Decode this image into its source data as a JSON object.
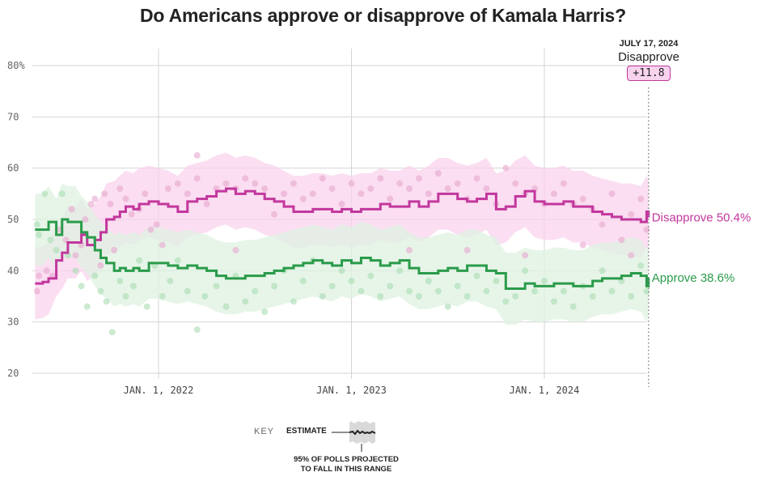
{
  "chart_data": {
    "type": "line",
    "title": "Do Americans approve or disapprove of Kamala Harris?",
    "xlabel": "",
    "ylabel": "",
    "ylim": [
      20,
      80
    ],
    "xlim": [
      2021.35,
      2024.54
    ],
    "y_ticks": [
      {
        "value": 80,
        "label": "80%"
      },
      {
        "value": 70,
        "label": "70"
      },
      {
        "value": 60,
        "label": "60"
      },
      {
        "value": 50,
        "label": "50"
      },
      {
        "value": 40,
        "label": "40"
      },
      {
        "value": 30,
        "label": "30"
      },
      {
        "value": 20,
        "label": "20"
      }
    ],
    "x_ticks": [
      {
        "value": 2022.0,
        "label": "JAN. 1, 2022"
      },
      {
        "value": 2023.0,
        "label": "JAN. 1, 2023"
      },
      {
        "value": 2024.0,
        "label": "JAN. 1, 2024"
      }
    ],
    "grid": true,
    "series": [
      {
        "name": "Disapprove",
        "color": "#c2379d",
        "band_color": "#f9d3ec",
        "dot_color": "#e7a6cf",
        "end_label": "Disapprove 50.4%",
        "x": [
          2021.36,
          2021.4,
          2021.43,
          2021.47,
          2021.5,
          2021.53,
          2021.57,
          2021.6,
          2021.63,
          2021.67,
          2021.7,
          2021.73,
          2021.77,
          2021.8,
          2021.83,
          2021.87,
          2021.9,
          2021.95,
          2022.0,
          2022.05,
          2022.1,
          2022.15,
          2022.2,
          2022.25,
          2022.3,
          2022.35,
          2022.4,
          2022.45,
          2022.5,
          2022.55,
          2022.6,
          2022.65,
          2022.7,
          2022.75,
          2022.8,
          2022.85,
          2022.9,
          2022.95,
          2023.0,
          2023.05,
          2023.1,
          2023.15,
          2023.2,
          2023.25,
          2023.3,
          2023.35,
          2023.4,
          2023.45,
          2023.5,
          2023.55,
          2023.6,
          2023.65,
          2023.7,
          2023.75,
          2023.8,
          2023.85,
          2023.9,
          2023.95,
          2024.0,
          2024.05,
          2024.1,
          2024.15,
          2024.2,
          2024.25,
          2024.3,
          2024.35,
          2024.4,
          2024.45,
          2024.5,
          2024.53,
          2024.54
        ],
        "values": [
          37.5,
          37.8,
          38.5,
          42.0,
          43.5,
          45.5,
          45.5,
          47.0,
          45.0,
          46.0,
          47.5,
          50.0,
          50.5,
          51.5,
          52.5,
          52.0,
          53.0,
          53.5,
          53.0,
          52.5,
          51.5,
          53.5,
          54.0,
          54.5,
          55.5,
          56.0,
          55.0,
          55.5,
          55.0,
          54.0,
          53.5,
          52.5,
          51.5,
          51.5,
          52.0,
          52.0,
          51.5,
          52.0,
          51.5,
          52.0,
          52.0,
          53.0,
          52.5,
          52.5,
          53.5,
          52.5,
          53.5,
          55.0,
          55.0,
          54.0,
          53.5,
          54.0,
          55.0,
          52.0,
          52.5,
          54.5,
          55.5,
          53.5,
          53.0,
          53.0,
          53.5,
          52.5,
          52.5,
          51.5,
          51.0,
          50.5,
          50.0,
          50.0,
          49.5,
          51.5,
          50.4
        ],
        "band_width": 7
      },
      {
        "name": "Approve",
        "color": "#2a9b4a",
        "band_color": "#dff2e2",
        "dot_color": "#a8dcb3",
        "end_label": "Approve 38.6%",
        "x": [
          2021.36,
          2021.4,
          2021.43,
          2021.47,
          2021.5,
          2021.53,
          2021.57,
          2021.6,
          2021.63,
          2021.67,
          2021.7,
          2021.73,
          2021.77,
          2021.8,
          2021.83,
          2021.87,
          2021.9,
          2021.95,
          2022.0,
          2022.05,
          2022.1,
          2022.15,
          2022.2,
          2022.25,
          2022.3,
          2022.35,
          2022.4,
          2022.45,
          2022.5,
          2022.55,
          2022.6,
          2022.65,
          2022.7,
          2022.75,
          2022.8,
          2022.85,
          2022.9,
          2022.95,
          2023.0,
          2023.05,
          2023.1,
          2023.15,
          2023.2,
          2023.25,
          2023.3,
          2023.35,
          2023.4,
          2023.45,
          2023.5,
          2023.55,
          2023.6,
          2023.65,
          2023.7,
          2023.75,
          2023.8,
          2023.85,
          2023.9,
          2023.95,
          2024.0,
          2024.05,
          2024.1,
          2024.15,
          2024.2,
          2024.25,
          2024.3,
          2024.35,
          2024.4,
          2024.45,
          2024.5,
          2024.53,
          2024.54
        ],
        "values": [
          48.0,
          48.0,
          49.5,
          47.0,
          50.0,
          49.5,
          49.5,
          47.5,
          46.5,
          44.0,
          42.5,
          41.5,
          40.0,
          40.5,
          40.0,
          40.5,
          40.0,
          41.5,
          41.5,
          41.0,
          40.5,
          41.0,
          40.5,
          40.0,
          39.0,
          38.5,
          38.5,
          39.0,
          39.0,
          39.5,
          40.0,
          40.5,
          41.0,
          41.5,
          42.0,
          41.5,
          41.0,
          42.0,
          41.5,
          42.5,
          42.0,
          41.0,
          41.5,
          42.0,
          40.5,
          39.5,
          39.5,
          40.0,
          40.5,
          40.0,
          41.0,
          41.0,
          40.0,
          39.5,
          36.5,
          36.5,
          37.5,
          37.0,
          37.0,
          37.5,
          37.5,
          37.0,
          37.0,
          38.0,
          38.5,
          38.5,
          39.0,
          39.5,
          39.0,
          37.0,
          38.6
        ],
        "band_width": 7
      }
    ],
    "polls": {
      "disapprove": [
        [
          2021.37,
          36
        ],
        [
          2021.38,
          39
        ],
        [
          2021.42,
          40
        ],
        [
          2021.45,
          39
        ],
        [
          2021.49,
          48
        ],
        [
          2021.52,
          46
        ],
        [
          2021.55,
          52
        ],
        [
          2021.57,
          43
        ],
        [
          2021.6,
          45
        ],
        [
          2021.62,
          50
        ],
        [
          2021.65,
          53
        ],
        [
          2021.67,
          54
        ],
        [
          2021.7,
          41
        ],
        [
          2021.72,
          55
        ],
        [
          2021.75,
          53
        ],
        [
          2021.77,
          44
        ],
        [
          2021.8,
          56
        ],
        [
          2021.83,
          54
        ],
        [
          2021.86,
          51
        ],
        [
          2021.9,
          52
        ],
        [
          2021.93,
          55
        ],
        [
          2021.96,
          48
        ],
        [
          2021.99,
          49
        ],
        [
          2022.05,
          56
        ],
        [
          2022.1,
          57
        ],
        [
          2022.15,
          55
        ],
        [
          2022.2,
          58
        ],
        [
          2022.25,
          53
        ],
        [
          2022.3,
          56
        ],
        [
          2022.35,
          57
        ],
        [
          2022.4,
          56
        ],
        [
          2022.45,
          58
        ],
        [
          2022.5,
          57
        ],
        [
          2022.55,
          56
        ],
        [
          2022.6,
          51
        ],
        [
          2022.65,
          55
        ],
        [
          2022.7,
          57
        ],
        [
          2022.75,
          54
        ],
        [
          2022.8,
          55
        ],
        [
          2022.85,
          58
        ],
        [
          2022.9,
          56
        ],
        [
          2022.95,
          53
        ],
        [
          2023.0,
          57
        ],
        [
          2023.05,
          55
        ],
        [
          2023.1,
          56
        ],
        [
          2023.15,
          58
        ],
        [
          2023.2,
          54
        ],
        [
          2023.25,
          57
        ],
        [
          2023.3,
          56
        ],
        [
          2023.35,
          58
        ],
        [
          2023.4,
          55
        ],
        [
          2023.45,
          59
        ],
        [
          2023.5,
          56
        ],
        [
          2023.55,
          57
        ],
        [
          2023.6,
          54
        ],
        [
          2023.65,
          58
        ],
        [
          2023.7,
          56
        ],
        [
          2023.75,
          53
        ],
        [
          2023.8,
          60
        ],
        [
          2023.85,
          57
        ],
        [
          2023.9,
          55
        ],
        [
          2023.95,
          56
        ],
        [
          2024.0,
          53
        ],
        [
          2024.05,
          55
        ],
        [
          2024.1,
          57
        ],
        [
          2024.15,
          53
        ],
        [
          2024.2,
          54
        ],
        [
          2024.25,
          52
        ],
        [
          2024.3,
          49
        ],
        [
          2024.35,
          55
        ],
        [
          2024.4,
          46
        ],
        [
          2024.45,
          51
        ],
        [
          2024.5,
          54
        ],
        [
          2024.53,
          48
        ],
        [
          2022.02,
          45
        ],
        [
          2022.2,
          62.5
        ],
        [
          2022.4,
          44
        ],
        [
          2023.3,
          44
        ],
        [
          2023.6,
          44
        ],
        [
          2023.9,
          43
        ],
        [
          2024.2,
          45
        ],
        [
          2024.45,
          43
        ]
      ],
      "approve": [
        [
          2021.37,
          49
        ],
        [
          2021.38,
          47
        ],
        [
          2021.41,
          55
        ],
        [
          2021.44,
          46
        ],
        [
          2021.47,
          44
        ],
        [
          2021.5,
          55
        ],
        [
          2021.53,
          43
        ],
        [
          2021.57,
          40
        ],
        [
          2021.6,
          37
        ],
        [
          2021.63,
          33
        ],
        [
          2021.67,
          39
        ],
        [
          2021.7,
          36
        ],
        [
          2021.73,
          34
        ],
        [
          2021.76,
          28
        ],
        [
          2021.8,
          38
        ],
        [
          2021.83,
          35
        ],
        [
          2021.87,
          37
        ],
        [
          2021.9,
          42
        ],
        [
          2021.94,
          33
        ],
        [
          2021.98,
          41
        ],
        [
          2022.02,
          35
        ],
        [
          2022.06,
          38
        ],
        [
          2022.1,
          42
        ],
        [
          2022.15,
          36
        ],
        [
          2022.2,
          28.5
        ],
        [
          2022.24,
          35
        ],
        [
          2022.3,
          37
        ],
        [
          2022.35,
          33
        ],
        [
          2022.4,
          39
        ],
        [
          2022.45,
          34
        ],
        [
          2022.5,
          36
        ],
        [
          2022.55,
          32
        ],
        [
          2022.6,
          37
        ],
        [
          2022.65,
          40
        ],
        [
          2022.7,
          34
        ],
        [
          2022.75,
          38
        ],
        [
          2022.8,
          42
        ],
        [
          2022.85,
          35
        ],
        [
          2022.9,
          37
        ],
        [
          2022.95,
          40
        ],
        [
          2023.0,
          38
        ],
        [
          2023.05,
          36
        ],
        [
          2023.1,
          39
        ],
        [
          2023.15,
          35
        ],
        [
          2023.2,
          37
        ],
        [
          2023.25,
          40
        ],
        [
          2023.3,
          36
        ],
        [
          2023.35,
          35
        ],
        [
          2023.4,
          38
        ],
        [
          2023.45,
          36
        ],
        [
          2023.5,
          33
        ],
        [
          2023.55,
          37
        ],
        [
          2023.6,
          35
        ],
        [
          2023.65,
          39
        ],
        [
          2023.7,
          36
        ],
        [
          2023.75,
          38
        ],
        [
          2023.8,
          34
        ],
        [
          2023.85,
          35
        ],
        [
          2023.9,
          40
        ],
        [
          2023.95,
          36
        ],
        [
          2024.0,
          38
        ],
        [
          2024.05,
          34
        ],
        [
          2024.1,
          36
        ],
        [
          2024.15,
          33
        ],
        [
          2024.2,
          37
        ],
        [
          2024.25,
          35
        ],
        [
          2024.3,
          40
        ],
        [
          2024.35,
          36
        ],
        [
          2024.4,
          38
        ],
        [
          2024.45,
          35
        ],
        [
          2024.5,
          41
        ],
        [
          2024.53,
          36
        ]
      ]
    },
    "callout": {
      "date": "JULY 17, 2024",
      "metric": "Disapprove",
      "margin": "+11.8",
      "x": 2024.54
    },
    "key": {
      "key_label": "KEY",
      "estimate_label": "ESTIMATE",
      "range_label_line1": "95% OF POLLS PROJECTED",
      "range_label_line2": "TO FALL IN THIS RANGE"
    }
  }
}
